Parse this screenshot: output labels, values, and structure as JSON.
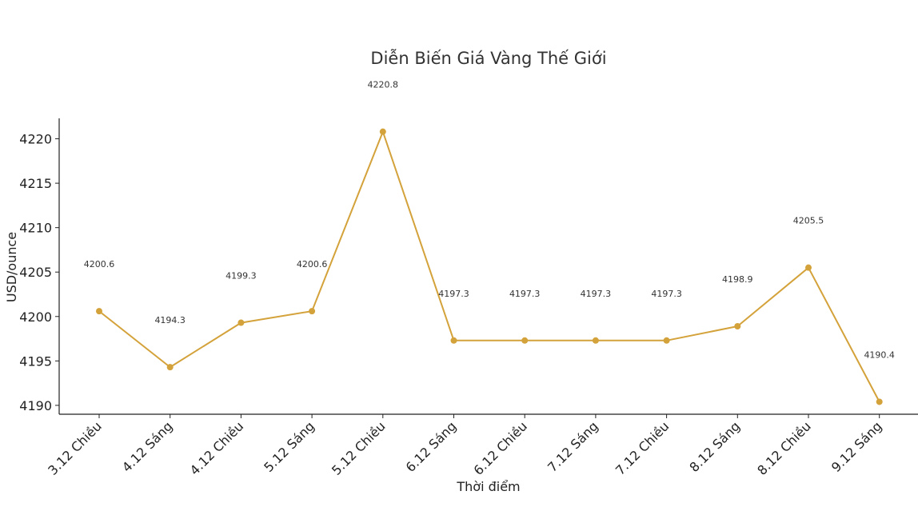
{
  "chart_data": {
    "type": "line",
    "title": "Diễn Biến Giá Vàng Thế Giới",
    "xlabel": "Thời điểm",
    "ylabel": "USD/ounce",
    "categories": [
      "3.12 Chiều",
      "4.12 Sáng",
      "4.12 Chiều",
      "5.12 Sáng",
      "5.12 Chiều",
      "6.12 Sáng",
      "6.12 Chiều",
      "7.12 Sáng",
      "7.12 Chiều",
      "8.12 Sáng",
      "8.12 Chiều",
      "9.12 Sáng"
    ],
    "series": [
      {
        "values": [
          4200.6,
          4194.3,
          4199.3,
          4200.6,
          4220.8,
          4197.3,
          4197.3,
          4197.3,
          4197.3,
          4198.9,
          4205.5,
          4190.4
        ],
        "color": "#D4A23A"
      }
    ],
    "data_labels": [
      "4200.6",
      "4194.3",
      "4199.3",
      "4200.6",
      "4220.8",
      "4197.3",
      "4197.3",
      "4197.3",
      "4197.3",
      "4198.9",
      "4205.5",
      "4190.4"
    ],
    "yticks": [
      4190,
      4195,
      4200,
      4205,
      4210,
      4215,
      4220
    ],
    "ylim": [
      4189,
      4222.3
    ],
    "grid": false,
    "legend": "none"
  }
}
